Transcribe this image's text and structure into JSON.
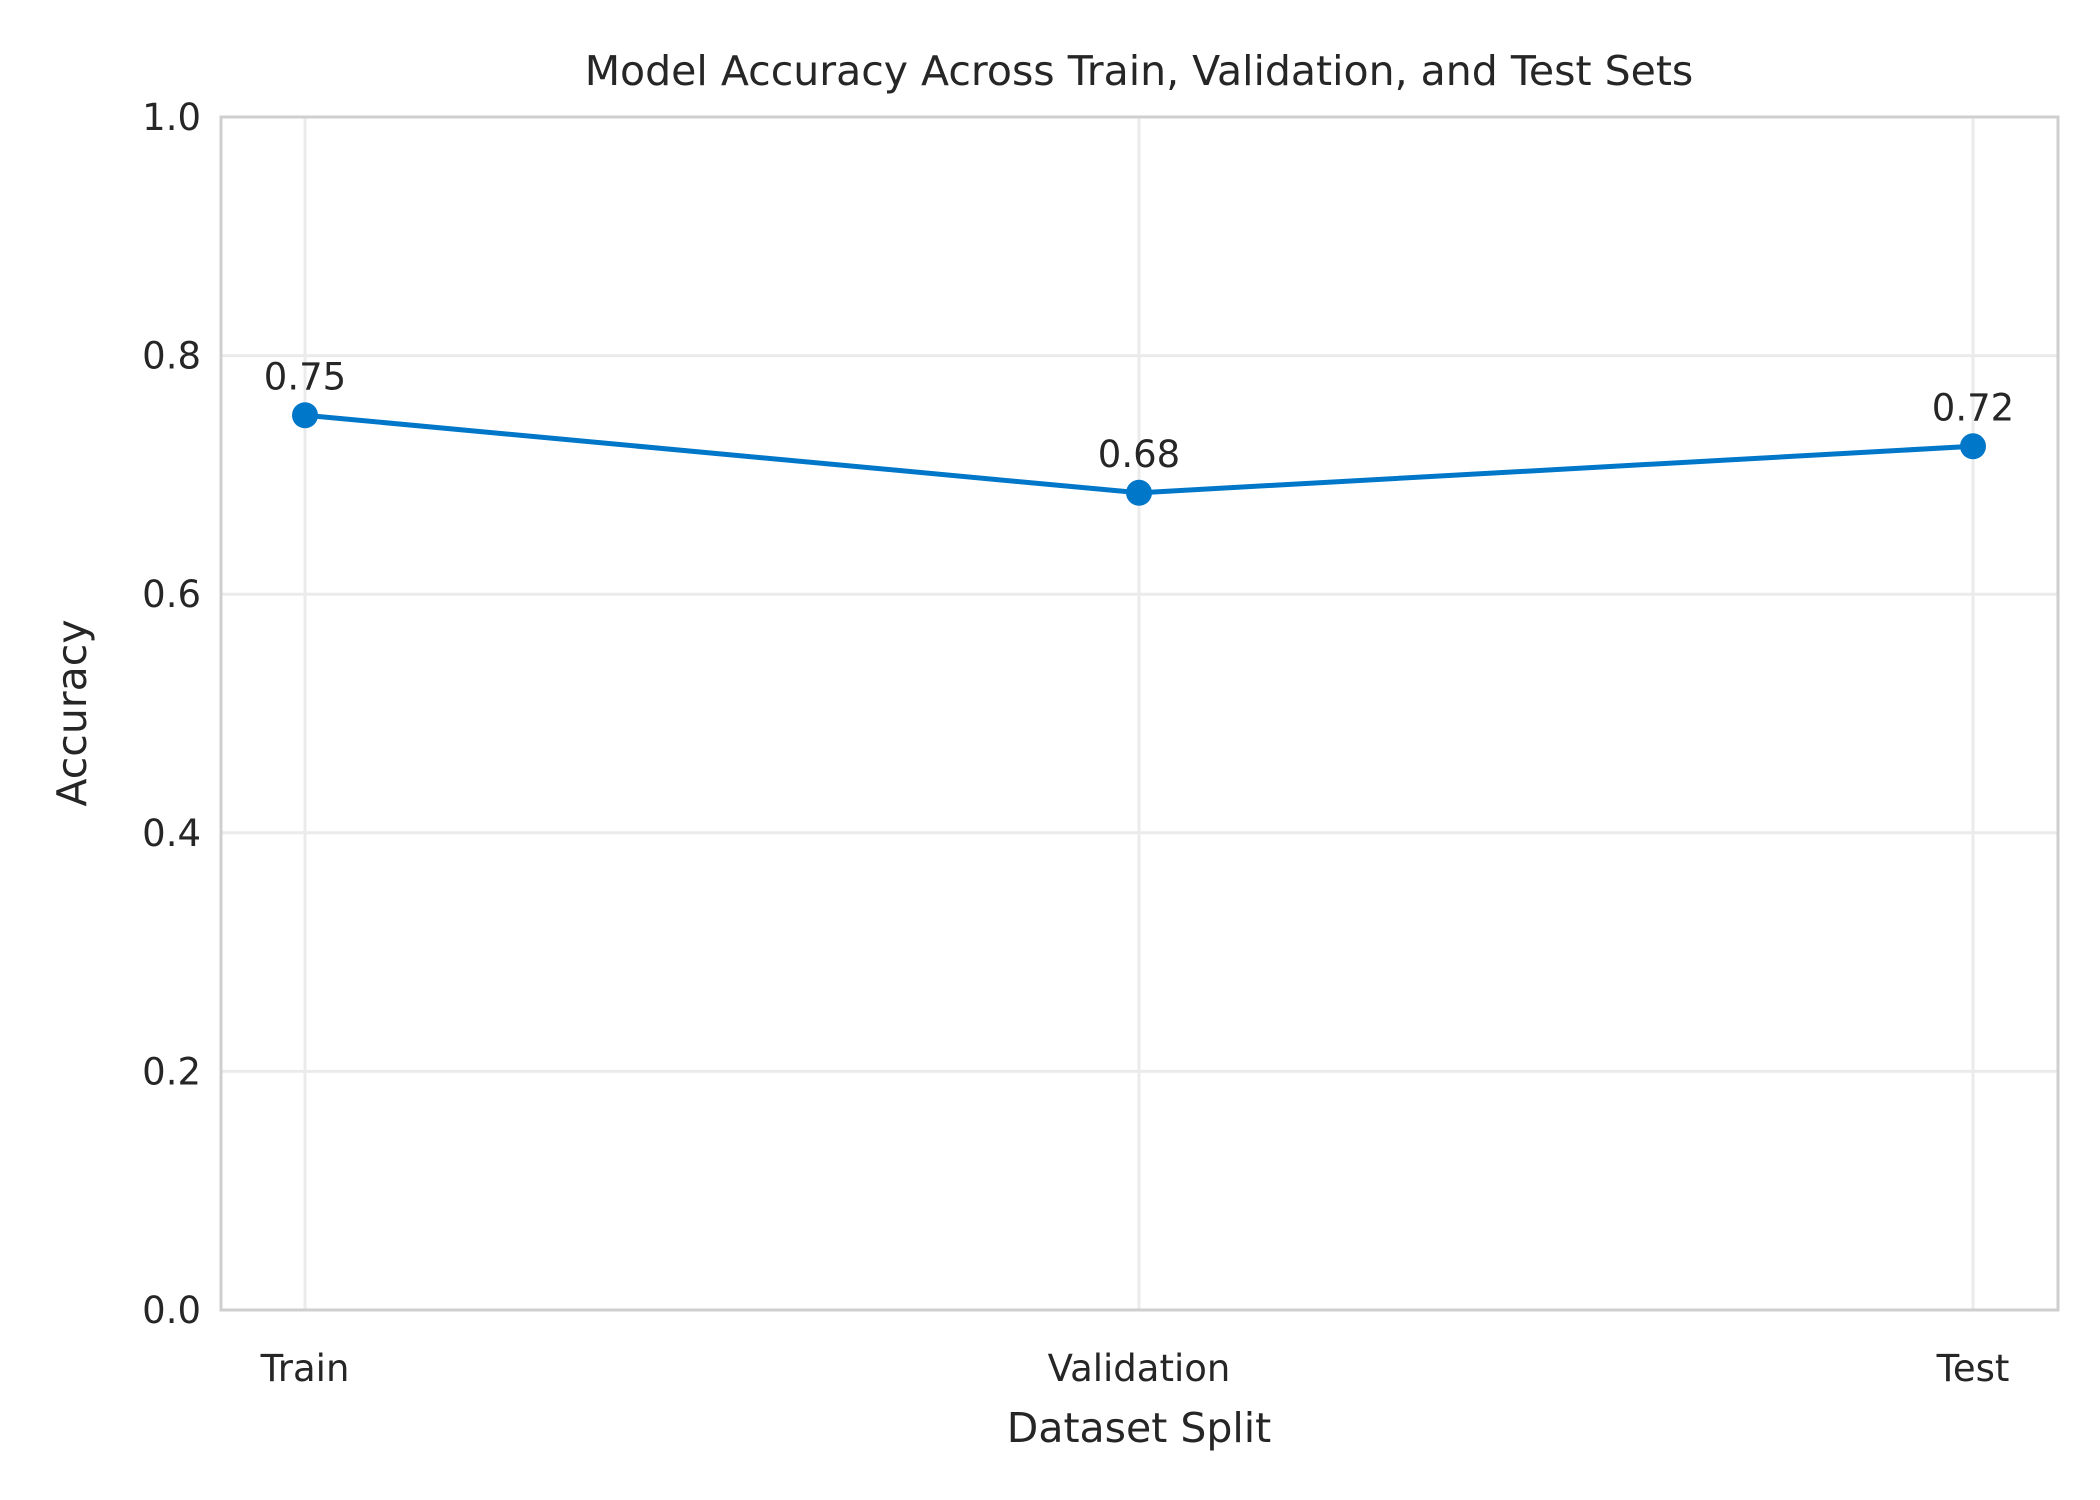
{
  "chart_data": {
    "type": "line",
    "title": "Model Accuracy Across Train, Validation, and Test Sets",
    "xlabel": "Dataset Split",
    "ylabel": "Accuracy",
    "categories": [
      "Train",
      "Validation",
      "Test"
    ],
    "series": [
      {
        "values": [
          0.75,
          0.685,
          0.724
        ],
        "data_labels": [
          "0.75",
          "0.68",
          "0.72"
        ],
        "color": "#0077C8",
        "marker": "circle"
      }
    ],
    "ylim": [
      0.0,
      1.0
    ],
    "yticks": [
      "0.0",
      "0.2",
      "0.4",
      "0.6",
      "0.8",
      "1.0"
    ],
    "grid": true,
    "legend": "none"
  }
}
